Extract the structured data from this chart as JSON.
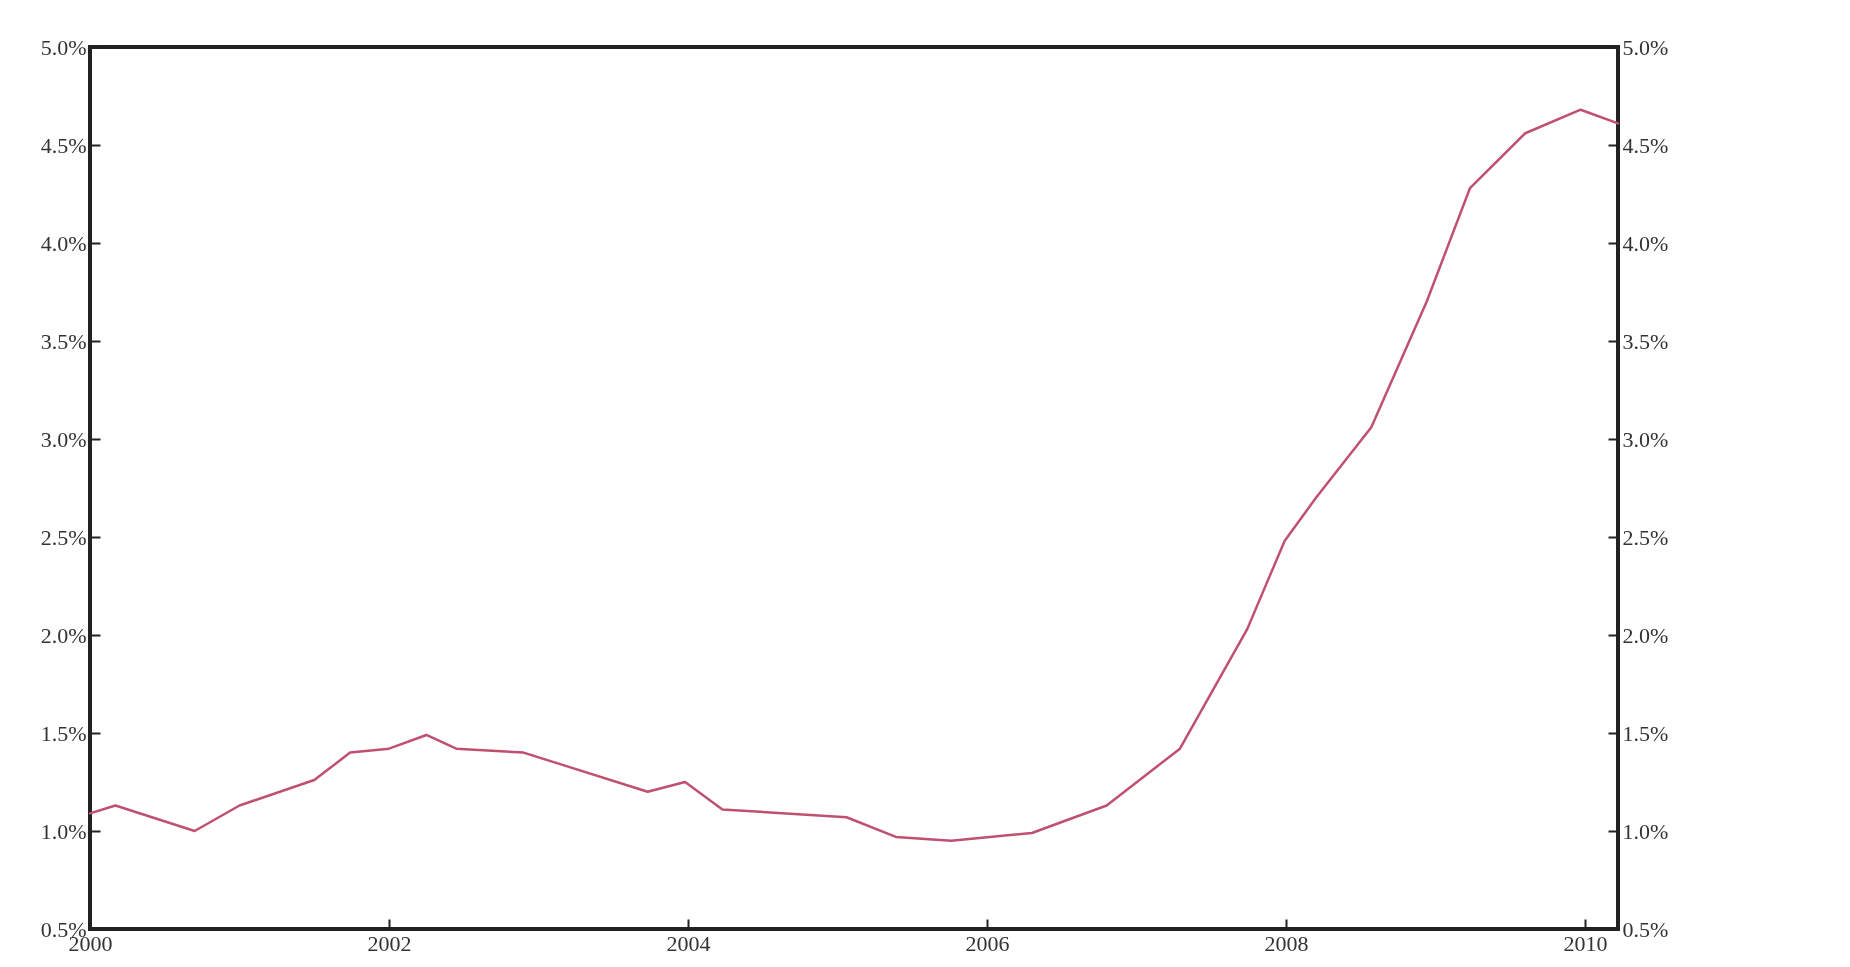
{
  "chart_data": {
    "type": "line",
    "x": [
      2000.0,
      2000.17,
      2000.7,
      2001.0,
      2001.5,
      2001.74,
      2002.0,
      2002.25,
      2002.45,
      2002.9,
      2003.15,
      2003.73,
      2003.98,
      2004.23,
      2005.06,
      2005.39,
      2005.76,
      2006.3,
      2006.8,
      2007.29,
      2007.74,
      2007.99,
      2008.2,
      2008.57,
      2008.94,
      2009.23,
      2009.6,
      2009.97,
      2010.22
    ],
    "series": [
      {
        "color": "#c05070",
        "values": [
          1.09,
          1.13,
          1.0,
          1.13,
          1.26,
          1.4,
          1.42,
          1.49,
          1.42,
          1.4,
          1.34,
          1.2,
          1.25,
          1.11,
          1.07,
          0.97,
          0.95,
          0.99,
          1.13,
          1.42,
          2.03,
          2.48,
          2.7,
          3.06,
          3.7,
          4.28,
          4.56,
          4.68,
          4.61
        ]
      }
    ],
    "xlim": [
      2000,
      2010.22
    ],
    "xticks": [
      2000,
      2002,
      2004,
      2006,
      2008,
      2010
    ],
    "ylim": [
      0.5,
      5.0
    ],
    "yticks": [
      {
        "value": 0.5,
        "label": "0.5%"
      },
      {
        "value": 1.0,
        "label": "1.0%"
      },
      {
        "value": 1.5,
        "label": "1.5%"
      },
      {
        "value": 2.0,
        "label": "2.0%"
      },
      {
        "value": 2.5,
        "label": "2.5%"
      },
      {
        "value": 3.0,
        "label": "3.0%"
      },
      {
        "value": 3.5,
        "label": "3.5%"
      },
      {
        "value": 4.0,
        "label": "4.0%"
      },
      {
        "value": 4.5,
        "label": "4.5%"
      },
      {
        "value": 5.0,
        "label": "5.0%"
      }
    ],
    "y2lim": [
      0.5,
      5.0
    ],
    "y2ticks": [
      {
        "value": 0.5,
        "label": "0.5%"
      },
      {
        "value": 1.0,
        "label": "1.0%"
      },
      {
        "value": 1.5,
        "label": "1.5%"
      },
      {
        "value": 2.0,
        "label": "2.0%"
      },
      {
        "value": 2.5,
        "label": "2.5%"
      },
      {
        "value": 3.0,
        "label": "3.0%"
      },
      {
        "value": 3.5,
        "label": "3.5%"
      },
      {
        "value": 4.0,
        "label": "4.0%"
      },
      {
        "value": 4.5,
        "label": "4.5%"
      },
      {
        "value": 5.0,
        "label": "5.0%"
      }
    ],
    "grid": false,
    "marker": "none",
    "line_style": "solid"
  }
}
